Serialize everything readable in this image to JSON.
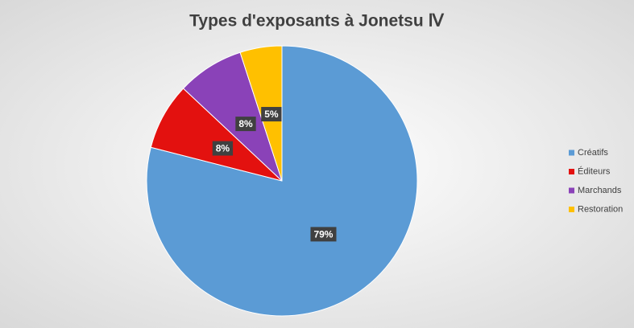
{
  "chart_data": {
    "type": "pie",
    "title": "Types d'exposants à Jonetsu Ⅳ",
    "categories": [
      "Créatifs",
      "Éditeurs",
      "Marchands",
      "Restoration"
    ],
    "values": [
      79,
      8,
      8,
      5
    ],
    "value_labels": [
      "79%",
      "8%",
      "8%",
      "5%"
    ],
    "colors": [
      "#5b9bd5",
      "#e3110f",
      "#8a42b8",
      "#ffc000"
    ],
    "legend": "right"
  }
}
